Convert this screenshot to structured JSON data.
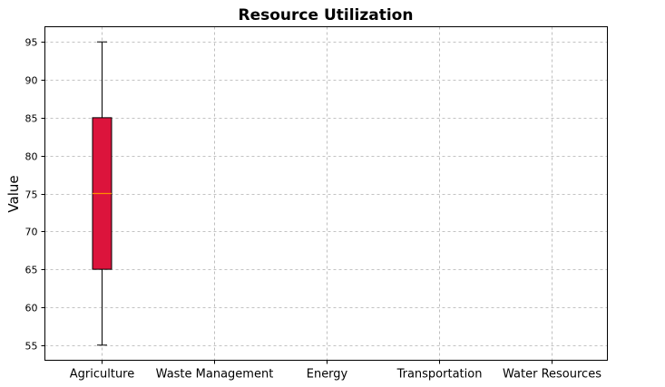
{
  "chart_data": {
    "type": "box",
    "title": "Resource Utilization",
    "xlabel": "",
    "ylabel": "Value",
    "categories": [
      "Agriculture",
      "Waste Management",
      "Energy",
      "Transportation",
      "Water Resources"
    ],
    "ylim": [
      53,
      97
    ],
    "yticks": [
      55,
      60,
      65,
      70,
      75,
      80,
      85,
      90,
      95
    ],
    "grid": true,
    "boxes": [
      {
        "category": "Agriculture",
        "min": 55,
        "q1": 65,
        "median": 75,
        "q3": 85,
        "max": 95,
        "color": "#dc143c",
        "median_color": "#ff8c00"
      }
    ]
  }
}
